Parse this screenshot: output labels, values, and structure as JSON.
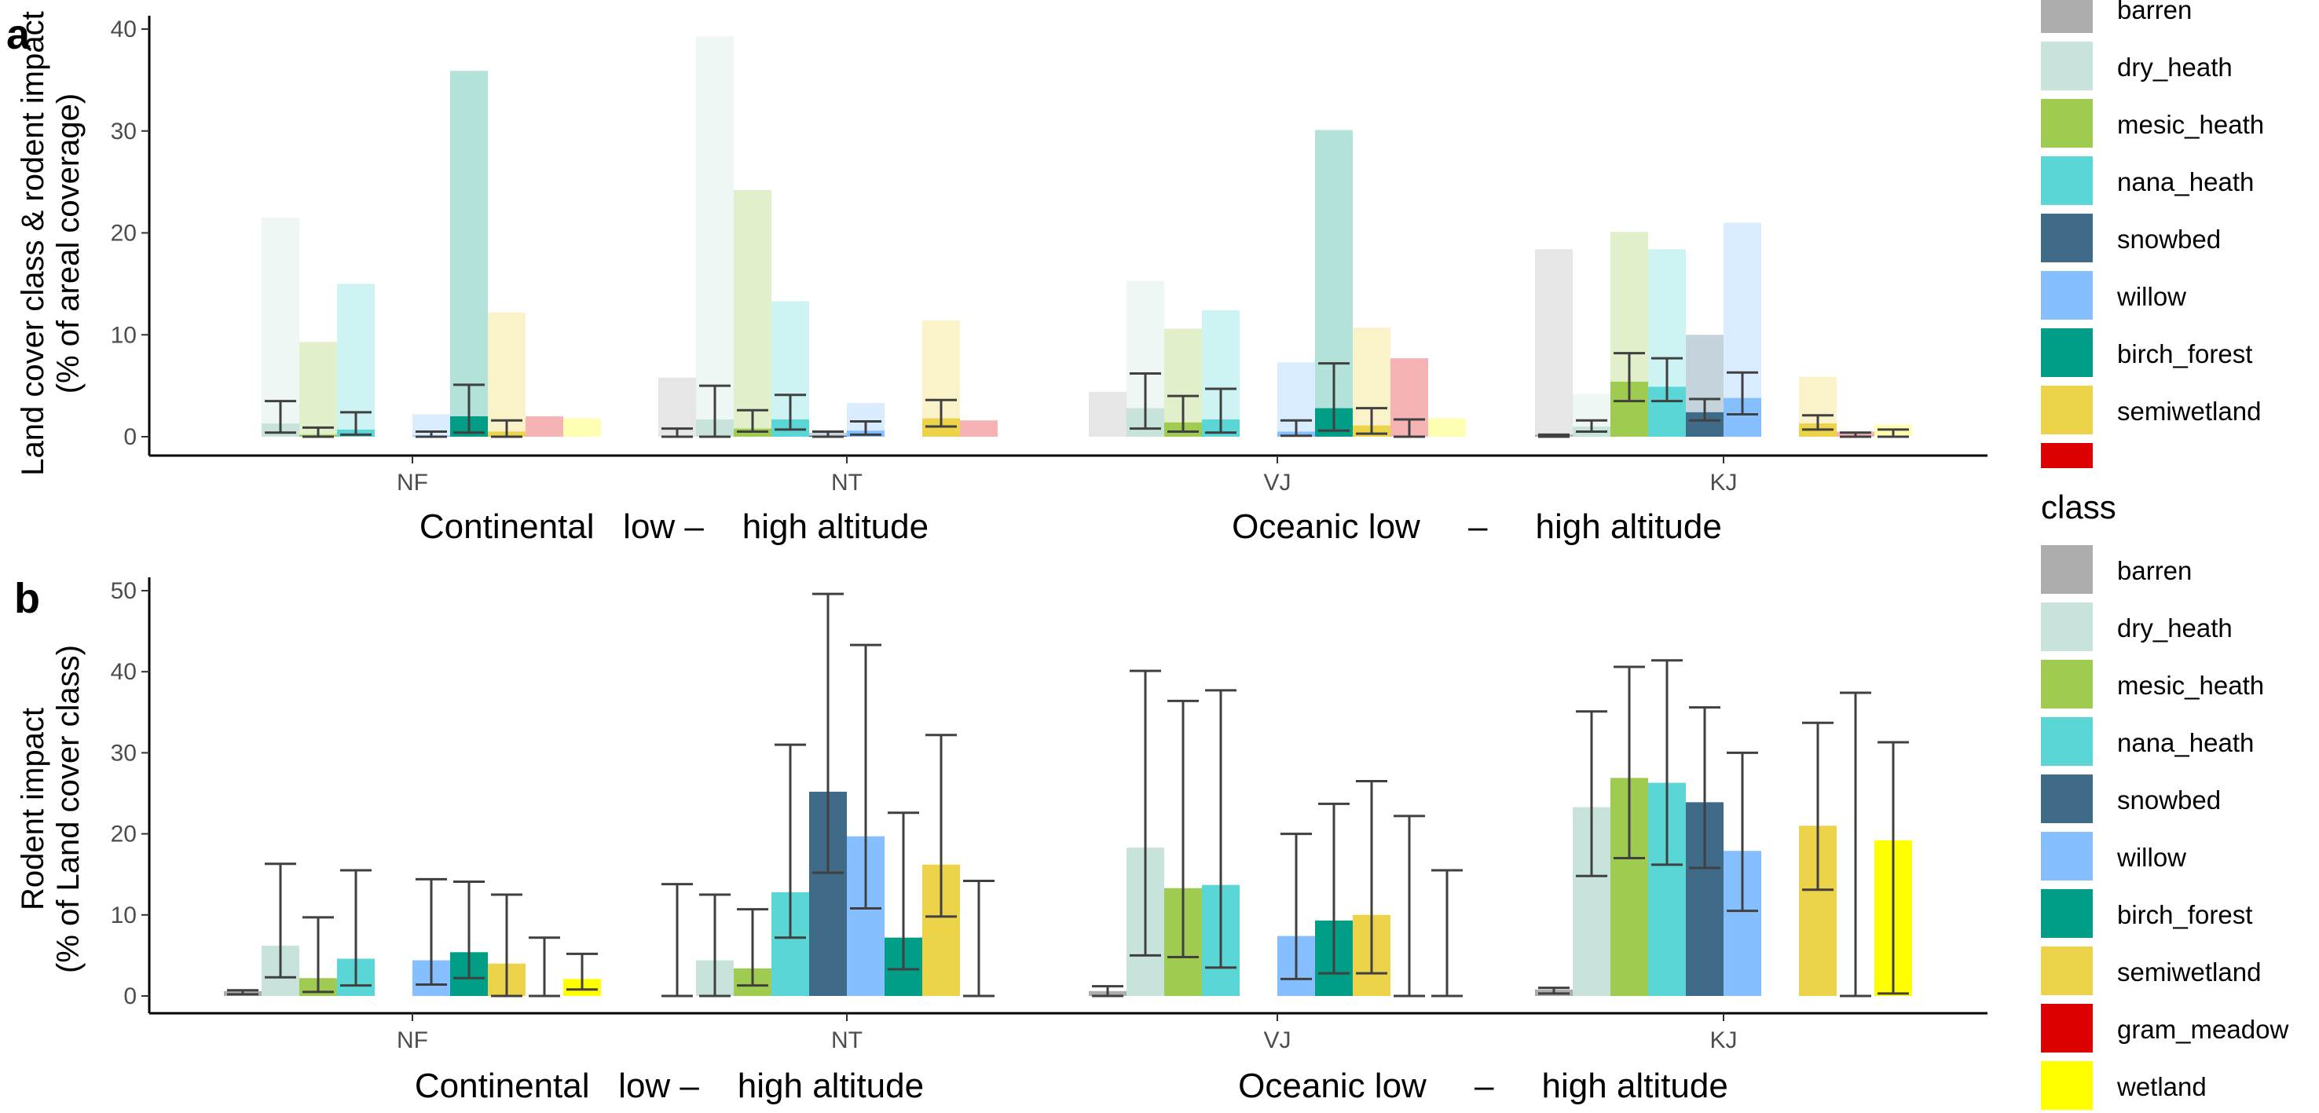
{
  "figure": {
    "legend_title": "class",
    "classes": [
      "barren",
      "dry_heath",
      "mesic_heath",
      "nana_heath",
      "snowbed",
      "willow",
      "birch_forest",
      "semiwetland",
      "gram_meadow",
      "wetland"
    ],
    "colors": {
      "barren": "#ADADAD",
      "dry_heath": "#C8E3DC",
      "mesic_heath": "#9FCB50",
      "nana_heath": "#5BD6D6",
      "snowbed": "#3F6B89",
      "willow": "#85BFFF",
      "birch_forest": "#009E86",
      "semiwetland": "#EDD34A",
      "gram_meadow": "#DD0000",
      "wetland": "#FFFF00"
    }
  },
  "chart_data": [
    {
      "panel": "a",
      "type": "bar",
      "ylabel": [
        "Land cover class & rodent impact",
        "(% of areal coverage)"
      ],
      "ylim": [
        0,
        41
      ],
      "yticks": [
        0,
        10,
        20,
        30,
        40
      ],
      "categories": [
        "NF",
        "NT",
        "VJ",
        "KJ"
      ],
      "subtitles": [
        "Continental   low –    high altitude",
        "Oceanic low     –     high altitude"
      ],
      "legend_visible": [
        "barren",
        "dry_heath",
        "mesic_heath",
        "nana_heath",
        "snowbed",
        "willow",
        "birch_forest",
        "semiwetland",
        "gram_meadow"
      ],
      "series": [
        {
          "name": "barren",
          "cover": [
            0,
            5.8,
            4.4,
            18.4
          ],
          "impact": [
            0,
            0,
            0,
            0.2
          ],
          "err": [
            [
              0,
              0
            ],
            [
              0,
              0.8
            ],
            [
              0,
              0
            ],
            [
              0,
              0.2
            ]
          ]
        },
        {
          "name": "dry_heath",
          "cover": [
            21.5,
            39.3,
            15.3,
            4.2
          ],
          "impact": [
            1.3,
            1.7,
            2.8,
            1
          ],
          "err": [
            [
              0.4,
              3.5
            ],
            [
              0,
              5
            ],
            [
              0.8,
              6.2
            ],
            [
              0.5,
              1.6
            ]
          ]
        },
        {
          "name": "mesic_heath",
          "cover": [
            9.3,
            24.2,
            10.6,
            20.1
          ],
          "impact": [
            0.2,
            0.8,
            1.4,
            5.4
          ],
          "err": [
            [
              0,
              0.9
            ],
            [
              0.5,
              2.6
            ],
            [
              0.5,
              4
            ],
            [
              3.5,
              8.2
            ]
          ]
        },
        {
          "name": "nana_heath",
          "cover": [
            15,
            13.3,
            12.4,
            18.4
          ],
          "impact": [
            0.7,
            1.7,
            1.7,
            4.9
          ],
          "err": [
            [
              0.2,
              2.4
            ],
            [
              0.7,
              4.1
            ],
            [
              0.4,
              4.7
            ],
            [
              3.5,
              7.7
            ]
          ]
        },
        {
          "name": "snowbed",
          "cover": [
            0,
            0.4,
            0,
            10
          ],
          "impact": [
            0,
            0.1,
            0,
            2.4
          ],
          "err": [
            [
              0,
              0
            ],
            [
              0,
              0.5
            ],
            [
              0,
              0
            ],
            [
              1.6,
              3.7
            ]
          ]
        },
        {
          "name": "willow",
          "cover": [
            2.2,
            3.3,
            7.3,
            21
          ],
          "impact": [
            0.1,
            0.6,
            0.5,
            3.8
          ],
          "err": [
            [
              0,
              0.5
            ],
            [
              0.2,
              1.5
            ],
            [
              0.1,
              1.6
            ],
            [
              2.2,
              6.3
            ]
          ]
        },
        {
          "name": "birch_forest",
          "cover": [
            35.9,
            0,
            30.1,
            0
          ],
          "impact": [
            2,
            0,
            2.8,
            0
          ],
          "err": [
            [
              0.4,
              5.1
            ],
            [
              0,
              0
            ],
            [
              0.6,
              7.2
            ],
            [
              0,
              0
            ]
          ]
        },
        {
          "name": "semiwetland",
          "cover": [
            12.2,
            11.4,
            10.7,
            5.9
          ],
          "impact": [
            0.5,
            1.8,
            1.1,
            1.3
          ],
          "err": [
            [
              0,
              1.6
            ],
            [
              1,
              3.6
            ],
            [
              0.3,
              2.8
            ],
            [
              0.7,
              2.1
            ]
          ]
        },
        {
          "name": "gram_meadow",
          "cover": [
            2,
            1.6,
            7.7,
            0.5
          ],
          "impact": [
            0,
            0,
            0,
            0
          ],
          "err": [
            [
              0,
              0
            ],
            [
              0,
              0
            ],
            [
              0,
              1.7
            ],
            [
              0,
              0.4
            ]
          ]
        },
        {
          "name": "wetland",
          "cover": [
            1.8,
            0,
            1.8,
            1.2
          ],
          "impact": [
            0,
            0,
            0,
            0
          ],
          "err": [
            [
              0,
              0
            ],
            [
              0,
              0
            ],
            [
              0,
              0
            ],
            [
              0,
              0.7
            ]
          ]
        }
      ]
    },
    {
      "panel": "b",
      "type": "bar",
      "ylabel": [
        "Rodent impact",
        "(% of Land cover class)"
      ],
      "ylim": [
        -2.3,
        52
      ],
      "yticks": [
        0,
        10,
        20,
        30,
        40,
        50
      ],
      "categories": [
        "NF",
        "NT",
        "VJ",
        "KJ"
      ],
      "subtitles": [
        "Continental   low –    high altitude",
        "Oceanic low     –     high altitude"
      ],
      "legend_visible": [
        "barren",
        "dry_heath",
        "mesic_heath",
        "nana_heath",
        "snowbed",
        "willow",
        "birch_forest",
        "semiwetland",
        "gram_meadow",
        "wetland"
      ],
      "series": [
        {
          "name": "barren",
          "values": [
            0.6,
            0,
            0.6,
            0.8
          ],
          "err": [
            [
              0.2,
              0.7
            ],
            [
              0,
              13.8
            ],
            [
              0,
              1.2
            ],
            [
              0.3,
              1
            ]
          ]
        },
        {
          "name": "dry_heath",
          "values": [
            6.2,
            4.4,
            18.3,
            23.3
          ],
          "err": [
            [
              2.3,
              16.3
            ],
            [
              0,
              12.5
            ],
            [
              5,
              40.1
            ],
            [
              14.8,
              35.1
            ]
          ]
        },
        {
          "name": "mesic_heath",
          "values": [
            2.2,
            3.4,
            13.3,
            26.9
          ],
          "err": [
            [
              0.5,
              9.7
            ],
            [
              1.3,
              10.7
            ],
            [
              4.8,
              36.4
            ],
            [
              17,
              40.6
            ]
          ]
        },
        {
          "name": "nana_heath",
          "values": [
            4.6,
            12.8,
            13.7,
            26.3
          ],
          "err": [
            [
              1.3,
              15.5
            ],
            [
              7.2,
              31
            ],
            [
              3.5,
              37.7
            ],
            [
              16.2,
              41.4
            ]
          ]
        },
        {
          "name": "snowbed",
          "values": [
            0,
            25.2,
            0,
            23.9
          ],
          "err": [
            [
              0,
              0
            ],
            [
              15.2,
              49.6
            ],
            [
              0,
              0
            ],
            [
              15.8,
              35.6
            ]
          ]
        },
        {
          "name": "willow",
          "values": [
            4.4,
            19.7,
            7.4,
            17.9
          ],
          "err": [
            [
              1.4,
              14.4
            ],
            [
              10.8,
              43.3
            ],
            [
              2.1,
              20
            ],
            [
              10.5,
              30
            ]
          ]
        },
        {
          "name": "birch_forest",
          "values": [
            5.4,
            7.2,
            9.3,
            0
          ],
          "err": [
            [
              2.2,
              14.1
            ],
            [
              3.3,
              22.6
            ],
            [
              2.8,
              23.7
            ],
            [
              0,
              0
            ]
          ]
        },
        {
          "name": "semiwetland",
          "values": [
            4,
            16.2,
            10,
            21
          ],
          "err": [
            [
              0,
              12.5
            ],
            [
              9.8,
              32.2
            ],
            [
              2.8,
              26.5
            ],
            [
              13.1,
              33.7
            ]
          ]
        },
        {
          "name": "gram_meadow",
          "values": [
            0,
            0,
            0,
            0
          ],
          "err": [
            [
              0,
              7.2
            ],
            [
              0,
              14.2
            ],
            [
              0,
              22.2
            ],
            [
              0,
              37.4
            ]
          ]
        },
        {
          "name": "wetland",
          "values": [
            2.1,
            0,
            0,
            19.2
          ],
          "err": [
            [
              0.8,
              5.2
            ],
            [
              0,
              0
            ],
            [
              0,
              15.5
            ],
            [
              0.3,
              31.3
            ]
          ]
        }
      ]
    }
  ]
}
